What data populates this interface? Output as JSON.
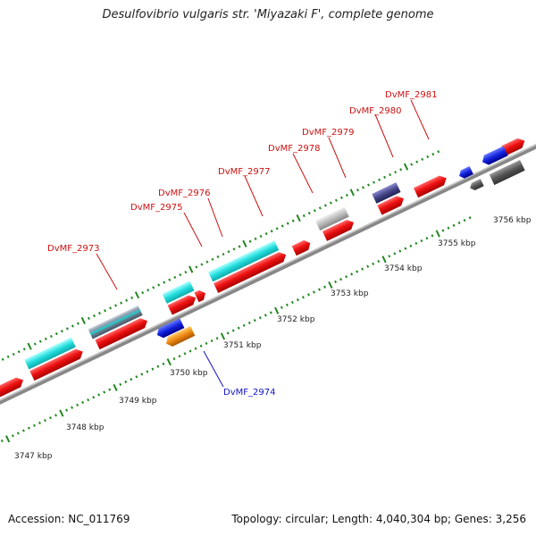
{
  "title": "Desulfovibrio vulgaris str. 'Miyazaki F', complete genome",
  "footer": {
    "accession": "Accession: NC_011769",
    "topology": "Topology: circular; Length: 4,040,304 bp; Genes: 3,256"
  },
  "colors": {
    "cds": "#ee1111",
    "tRNA": "#22dddd",
    "rRNA": "#8899aa",
    "misc_feature": "#1122dd",
    "repeat": "#ee8811",
    "pseudo": "#aaaaaa",
    "regulatory": "#444488",
    "other": "#555555",
    "track": "#888888",
    "ticks": "#228822",
    "gene_label": "#cc1111",
    "gene_label_minus": "#1111cc"
  },
  "scale_labels": [
    "3747 kbp",
    "3748 kbp",
    "3749 kbp",
    "3750 kbp",
    "3751 kbp",
    "3752 kbp",
    "3753 kbp",
    "3754 kbp",
    "3755 kbp",
    "3756 kbp"
  ],
  "gene_labels": [
    {
      "text": "DvMF_2973",
      "strand": "+"
    },
    {
      "text": "DvMF_2974",
      "strand": "-"
    },
    {
      "text": "DvMF_2975",
      "strand": "+"
    },
    {
      "text": "DvMF_2976",
      "strand": "+"
    },
    {
      "text": "DvMF_2977",
      "strand": "+"
    },
    {
      "text": "DvMF_2978",
      "strand": "+"
    },
    {
      "text": "DvMF_2979",
      "strand": "+"
    },
    {
      "text": "DvMF_2980",
      "strand": "+"
    },
    {
      "text": "DvMF_2981",
      "strand": "+"
    }
  ]
}
